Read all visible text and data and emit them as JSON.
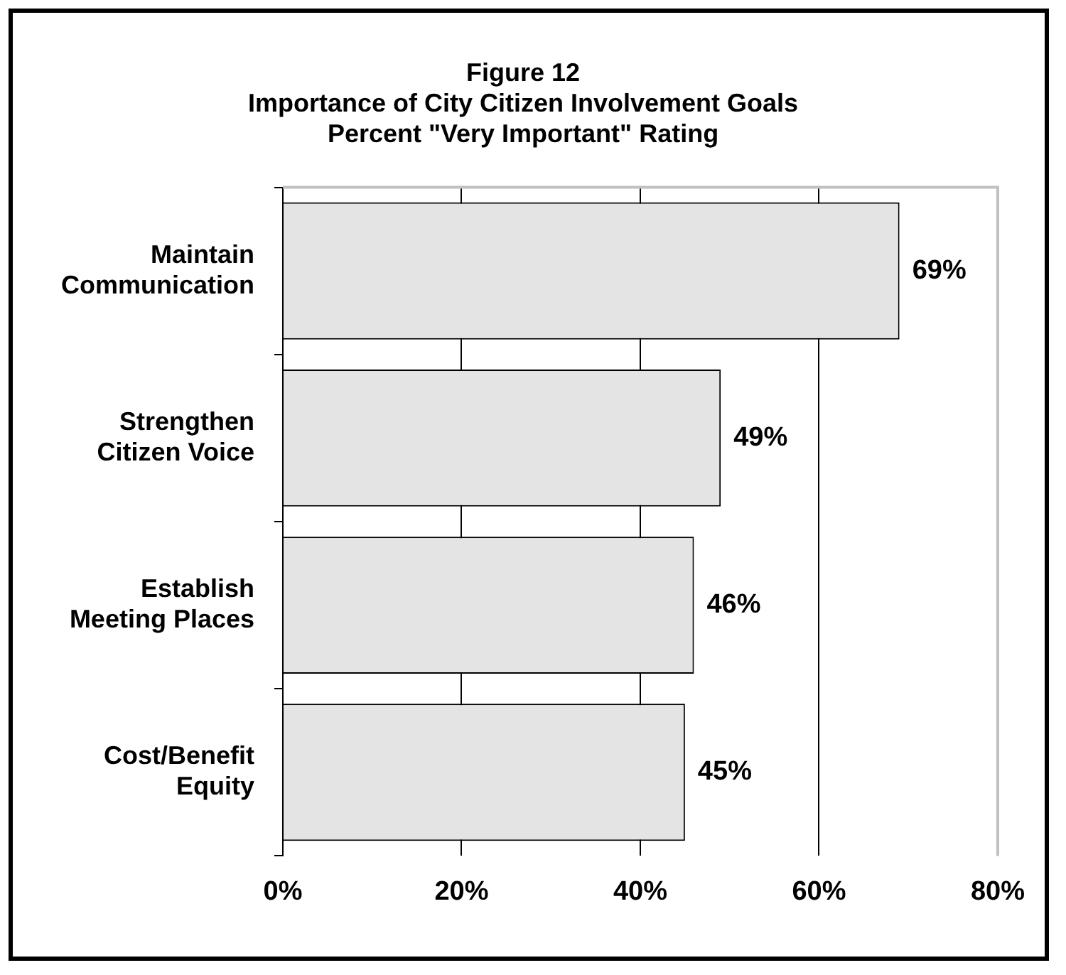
{
  "chart_data": {
    "type": "bar",
    "orientation": "horizontal",
    "title": "Figure 12\nImportance of City Citizen Involvement Goals\nPercent \"Very Important\" Rating",
    "categories": [
      "Maintain Communication",
      "Strengthen Citizen Voice",
      "Establish Meeting Places",
      "Cost/Benefit Equity"
    ],
    "values": [
      69,
      49,
      46,
      45
    ],
    "value_labels": [
      "69%",
      "49%",
      "46%",
      "45%"
    ],
    "color": "#e4e4e4",
    "xlim": [
      0,
      80
    ],
    "xticks": [
      {
        "value": 0,
        "label": "0%"
      },
      {
        "value": 20,
        "label": "20%"
      },
      {
        "value": 40,
        "label": "40%"
      },
      {
        "value": 60,
        "label": "60%"
      },
      {
        "value": 80,
        "label": "80%"
      }
    ],
    "grid": "x",
    "legend": false
  }
}
